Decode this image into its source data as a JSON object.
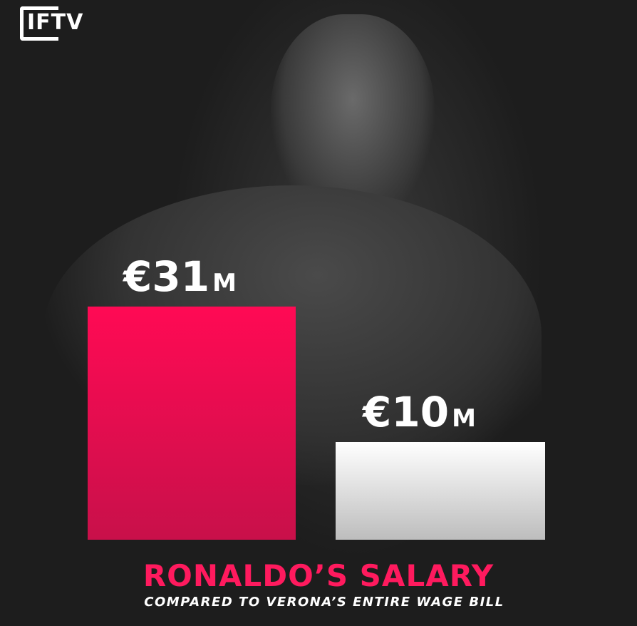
{
  "logo": "IFTV",
  "chart_data": {
    "type": "bar",
    "title": "RONALDO’S SALARY",
    "subtitle": "COMPARED TO VERONA’S ENTIRE WAGE BILL",
    "categories": [
      "",
      ""
    ],
    "values": [
      31,
      10
    ],
    "data_labels": [
      {
        "main": "€31",
        "unit": "M"
      },
      {
        "main": "€10",
        "unit": "M"
      }
    ],
    "colors": [
      "#ff0a54",
      "#f2f2f2"
    ],
    "grid": false
  }
}
